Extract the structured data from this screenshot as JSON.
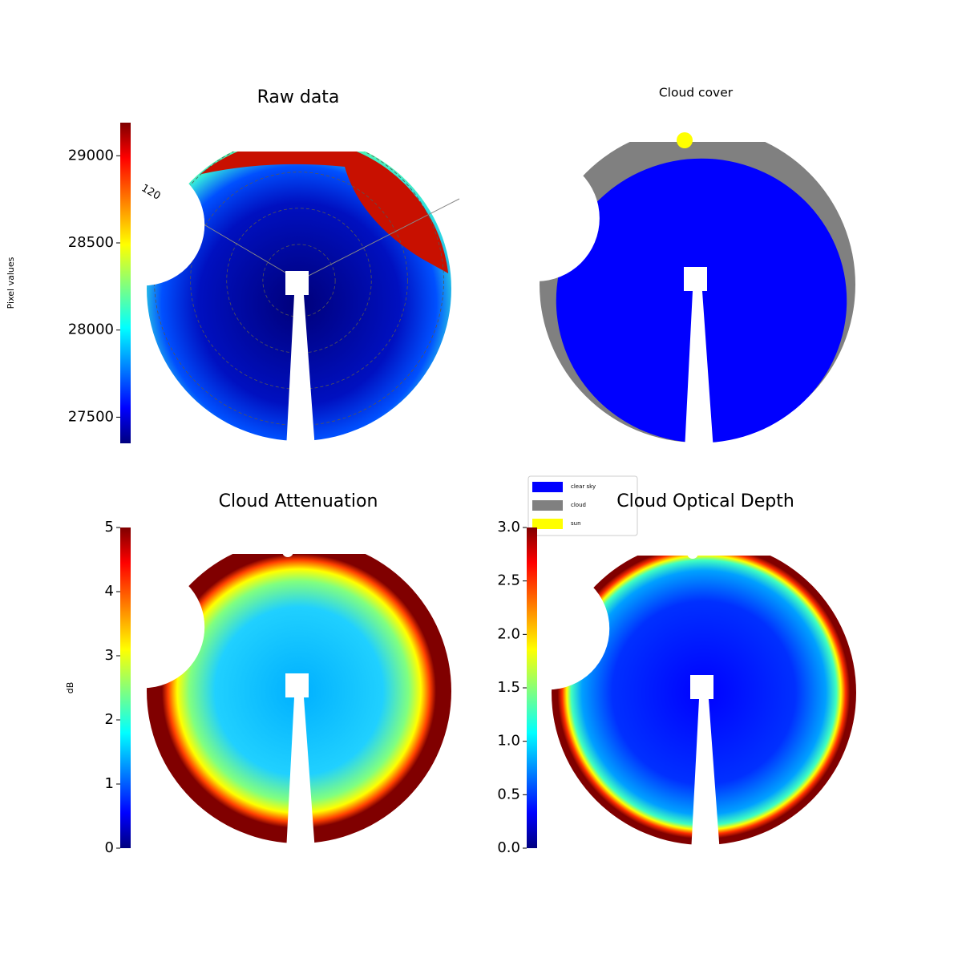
{
  "chart_data": [
    {
      "type": "image",
      "title": "Raw data",
      "colorbar_label": "Pixel values",
      "colormap": "jet",
      "ylim": [
        27350,
        29190
      ],
      "yticks": [
        27500,
        28000,
        28500,
        29000
      ],
      "annotations": [
        "120"
      ]
    },
    {
      "type": "classmap",
      "title": "Cloud cover",
      "series": [
        {
          "name": "clear sky",
          "color": "#0000ff"
        },
        {
          "name": "cloud",
          "color": "#808080"
        },
        {
          "name": "sun",
          "color": "#ffff00"
        }
      ]
    },
    {
      "type": "image",
      "title": "Cloud Attenuation",
      "colorbar_label": "dB",
      "colormap": "jet",
      "ylim": [
        0,
        5
      ],
      "yticks": [
        0,
        1,
        2,
        3,
        4,
        5
      ]
    },
    {
      "type": "image",
      "title": "Cloud Optical Depth",
      "colormap": "jet",
      "ylim": [
        0,
        3
      ],
      "yticks": [
        {
          "value": 0,
          "label": "0.0"
        },
        {
          "value": 0.5,
          "label": "0.5"
        },
        {
          "value": 1,
          "label": "1.0"
        },
        {
          "value": 1.5,
          "label": "1.5"
        },
        {
          "value": 2,
          "label": "2.0"
        },
        {
          "value": 2.5,
          "label": "2.5"
        },
        {
          "value": 3,
          "label": "3.0"
        }
      ]
    }
  ]
}
